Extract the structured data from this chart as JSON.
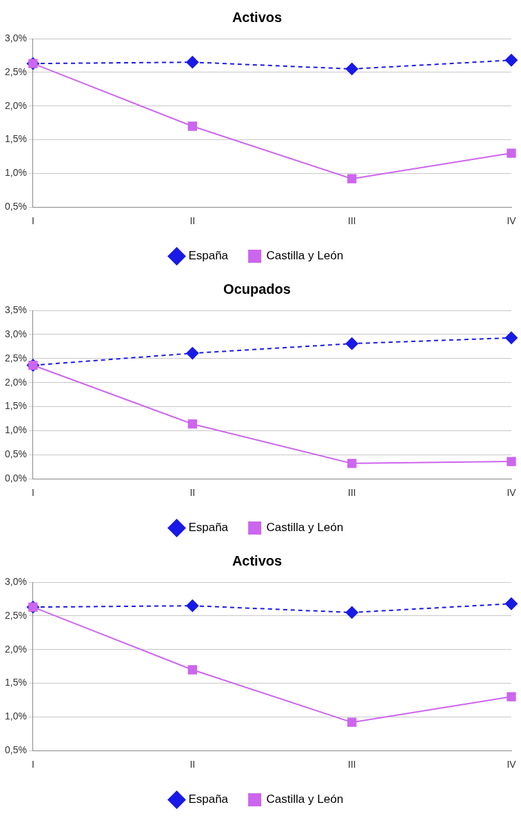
{
  "chart_data": [
    {
      "type": "line",
      "title": "Activos",
      "categories": [
        "I",
        "II",
        "III",
        "IV"
      ],
      "ylim": [
        0.5,
        3.0
      ],
      "yticks": [
        {
          "value": 0.5,
          "label": "0,5%"
        },
        {
          "value": 1.0,
          "label": "1,0%"
        },
        {
          "value": 1.5,
          "label": "1,5%"
        },
        {
          "value": 2.0,
          "label": "2,0%"
        },
        {
          "value": 2.5,
          "label": "2,5%"
        },
        {
          "value": 3.0,
          "label": "3,0%"
        }
      ],
      "grid": "y",
      "legend": "bottom",
      "series": [
        {
          "name": "España",
          "color": "#1a1ae6",
          "marker": "diamond",
          "line_style": "dashed",
          "values": [
            2.63,
            2.65,
            2.55,
            2.68
          ]
        },
        {
          "name": "Castilla y León",
          "color": "#cc66ee",
          "marker": "square",
          "line_style": "solid",
          "values": [
            2.63,
            1.7,
            0.92,
            1.3
          ]
        }
      ]
    },
    {
      "type": "line",
      "title": "Ocupados",
      "categories": [
        "I",
        "II",
        "III",
        "IV"
      ],
      "ylim": [
        0.0,
        3.5
      ],
      "yticks": [
        {
          "value": 0.0,
          "label": "0,0%"
        },
        {
          "value": 0.5,
          "label": "0,5%"
        },
        {
          "value": 1.0,
          "label": "1,0%"
        },
        {
          "value": 1.5,
          "label": "1,5%"
        },
        {
          "value": 2.0,
          "label": "2,0%"
        },
        {
          "value": 2.5,
          "label": "2,5%"
        },
        {
          "value": 3.0,
          "label": "3,0%"
        },
        {
          "value": 3.5,
          "label": "3,5%"
        }
      ],
      "grid": "y",
      "legend": "bottom",
      "series": [
        {
          "name": "España",
          "color": "#1a1ae6",
          "marker": "diamond",
          "line_style": "dashed",
          "values": [
            2.36,
            2.61,
            2.81,
            2.93
          ]
        },
        {
          "name": "Castilla y León",
          "color": "#cc66ee",
          "marker": "square",
          "line_style": "solid",
          "values": [
            2.36,
            1.14,
            0.32,
            0.36
          ]
        }
      ]
    },
    {
      "type": "line",
      "title": "Activos",
      "categories": [
        "I",
        "II",
        "III",
        "IV"
      ],
      "ylim": [
        0.5,
        3.0
      ],
      "yticks": [
        {
          "value": 0.5,
          "label": "0,5%"
        },
        {
          "value": 1.0,
          "label": "1,0%"
        },
        {
          "value": 1.5,
          "label": "1,5%"
        },
        {
          "value": 2.0,
          "label": "2,0%"
        },
        {
          "value": 2.5,
          "label": "2,5%"
        },
        {
          "value": 3.0,
          "label": "3,0%"
        }
      ],
      "grid": "y",
      "legend": "bottom",
      "series": [
        {
          "name": "España",
          "color": "#1a1ae6",
          "marker": "diamond",
          "line_style": "dashed",
          "values": [
            2.63,
            2.65,
            2.55,
            2.68
          ]
        },
        {
          "name": "Castilla y León",
          "color": "#cc66ee",
          "marker": "square",
          "line_style": "solid",
          "values": [
            2.63,
            1.7,
            0.92,
            1.3
          ]
        }
      ]
    }
  ]
}
